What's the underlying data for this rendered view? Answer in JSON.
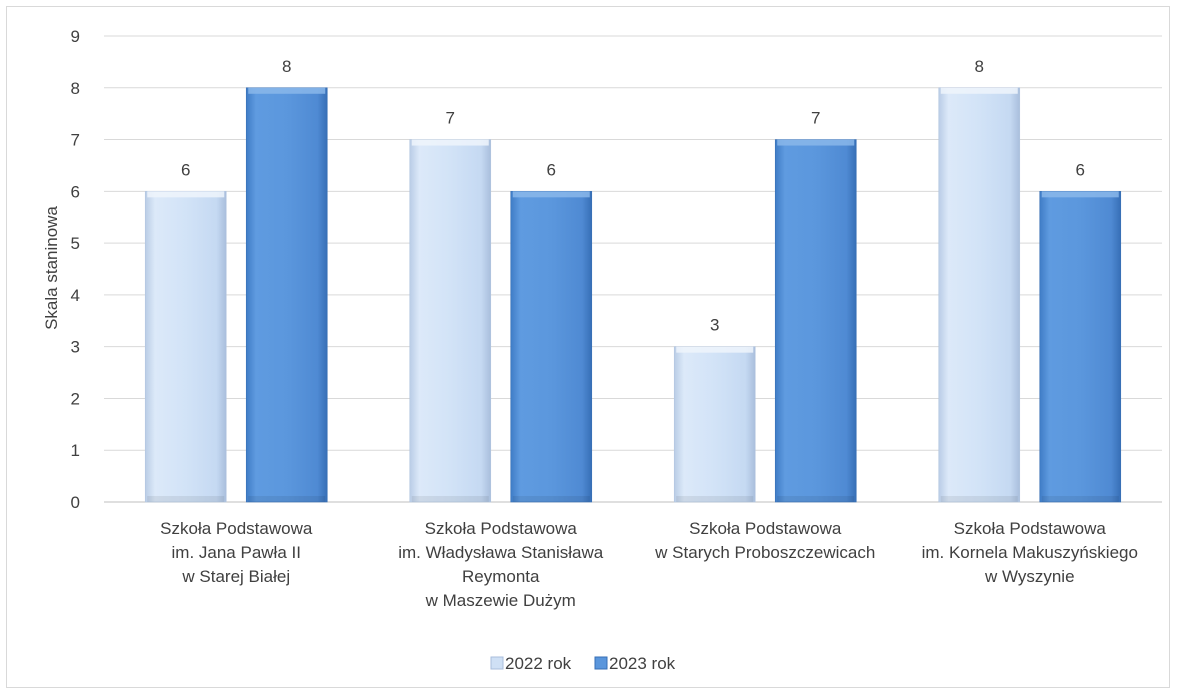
{
  "chart_data": {
    "type": "bar",
    "title": "",
    "xlabel": "",
    "ylabel": "Skala staninowa",
    "ylim": [
      0,
      9
    ],
    "yticks": [
      "0",
      "1",
      "2",
      "3",
      "4",
      "5",
      "6",
      "7",
      "8",
      "9"
    ],
    "grid": true,
    "legend_position": "bottom",
    "categories": [
      [
        "Szkoła Podstawowa",
        "im. Jana Pawła II",
        "w Starej Białej"
      ],
      [
        "Szkoła Podstawowa",
        "im. Władysława Stanisława",
        "Reymonta",
        "w Maszewie Dużym"
      ],
      [
        "Szkoła Podstawowa",
        "w Starych Proboszczewicach"
      ],
      [
        "Szkoła Podstawowa",
        "im. Kornela Makuszyńskiego",
        "w Wyszynie"
      ]
    ],
    "series": [
      {
        "name": "2022 rok",
        "values": [
          6,
          7,
          3,
          8
        ],
        "color": "#cfe0f5"
      },
      {
        "name": "2023 rok",
        "values": [
          8,
          6,
          7,
          6
        ],
        "color": "#5a96dc"
      }
    ]
  }
}
